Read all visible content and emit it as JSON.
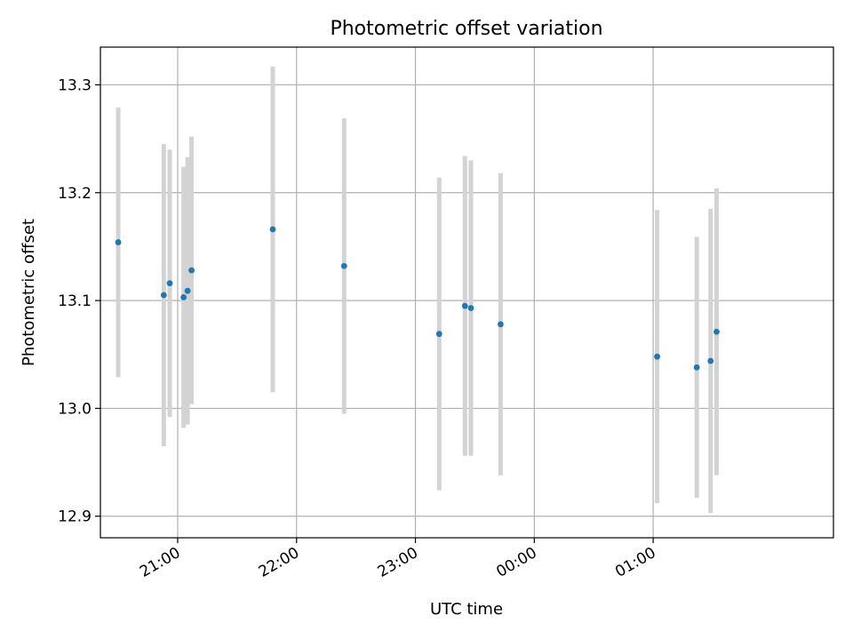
{
  "chart_data": {
    "type": "scatter",
    "title": "Photometric offset variation",
    "xlabel": "UTC time",
    "ylabel": "Photometric offset",
    "grid": true,
    "xlim": [
      "20:35",
      "26:17"
    ],
    "ylim": [
      12.88,
      13.335
    ],
    "x_ticks": [
      "21:00",
      "22:00",
      "23:00",
      "00:00",
      "01:00"
    ],
    "y_ticks": [
      12.9,
      13.0,
      13.1,
      13.2,
      13.3
    ],
    "point_color": "#1f77b4",
    "errorbar_color": "#d3d3d3",
    "points": [
      {
        "x": "20:30",
        "y": 13.154,
        "err": 0.125
      },
      {
        "x": "20:53",
        "y": 13.105,
        "err": 0.14
      },
      {
        "x": "20:56",
        "y": 13.116,
        "err": 0.124
      },
      {
        "x": "21:03",
        "y": 13.103,
        "err": 0.121
      },
      {
        "x": "21:05",
        "y": 13.109,
        "err": 0.124
      },
      {
        "x": "21:07",
        "y": 13.128,
        "err": 0.124
      },
      {
        "x": "21:48",
        "y": 13.166,
        "err": 0.151
      },
      {
        "x": "22:24",
        "y": 13.132,
        "err": 0.137
      },
      {
        "x": "23:12",
        "y": 13.069,
        "err": 0.145
      },
      {
        "x": "23:25",
        "y": 13.095,
        "err": 0.139
      },
      {
        "x": "23:28",
        "y": 13.093,
        "err": 0.137
      },
      {
        "x": "23:43",
        "y": 13.078,
        "err": 0.14
      },
      {
        "x": "01:02",
        "y": 13.048,
        "err": 0.136
      },
      {
        "x": "01:22",
        "y": 13.038,
        "err": 0.121
      },
      {
        "x": "01:29",
        "y": 13.044,
        "err": 0.141
      },
      {
        "x": "01:32",
        "y": 13.071,
        "err": 0.133
      }
    ]
  }
}
